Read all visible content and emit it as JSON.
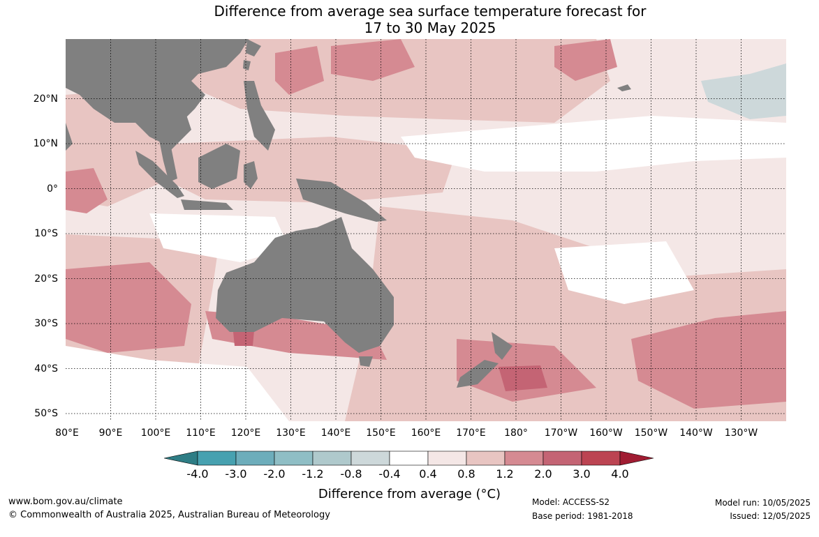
{
  "title": {
    "line1": "Difference from average sea surface temperature forecast for",
    "line2": "17 to 30 May 2025"
  },
  "lat_labels": [
    "20°N",
    "10°N",
    "0°",
    "10°S",
    "20°S",
    "30°S",
    "40°S",
    "50°S"
  ],
  "lon_labels": [
    "80°E",
    "90°E",
    "100°E",
    "110°E",
    "120°E",
    "130°E",
    "140°E",
    "150°E",
    "160°E",
    "170°E",
    "180°",
    "170°W",
    "160°W",
    "150°W",
    "140°W",
    "130°W"
  ],
  "colorbar": {
    "title": "Difference from average (°C)",
    "ticks": [
      "-4.0",
      "-3.0",
      "-2.0",
      "-1.2",
      "-0.8",
      "-0.4",
      "0.4",
      "0.8",
      "1.2",
      "2.0",
      "3.0",
      "4.0"
    ],
    "colors": [
      "#2e7d85",
      "#47a1b0",
      "#6dadbb",
      "#8fbec5",
      "#afc9cc",
      "#cdd8da",
      "#ffffff",
      "#f4e7e6",
      "#e8c5c2",
      "#d58a92",
      "#c46474",
      "#bc4452",
      "#a01c32"
    ]
  },
  "palette": {
    "land": "#808080",
    "anomaly_0_4_to_0_8": "#f4e7e6",
    "anomaly_0_8_to_1_2": "#e8c5c2",
    "anomaly_1_2_to_2_0": "#d58a92",
    "anomaly_2_0_to_3_0": "#c46474",
    "anomaly_neg_0_4_to_0_4": "#ffffff",
    "anomaly_neg_0_8_to_neg_0_4": "#cdd8da"
  },
  "footer": {
    "website": "www.bom.gov.au/climate",
    "copyright": "© Commonwealth of Australia 2025, Australian Bureau of Meteorology",
    "model": "Model: ACCESS-S2",
    "base_period": "Base period: 1981-2018",
    "model_run": "Model run: 10/05/2025",
    "issued": "Issued: 12/05/2025"
  }
}
